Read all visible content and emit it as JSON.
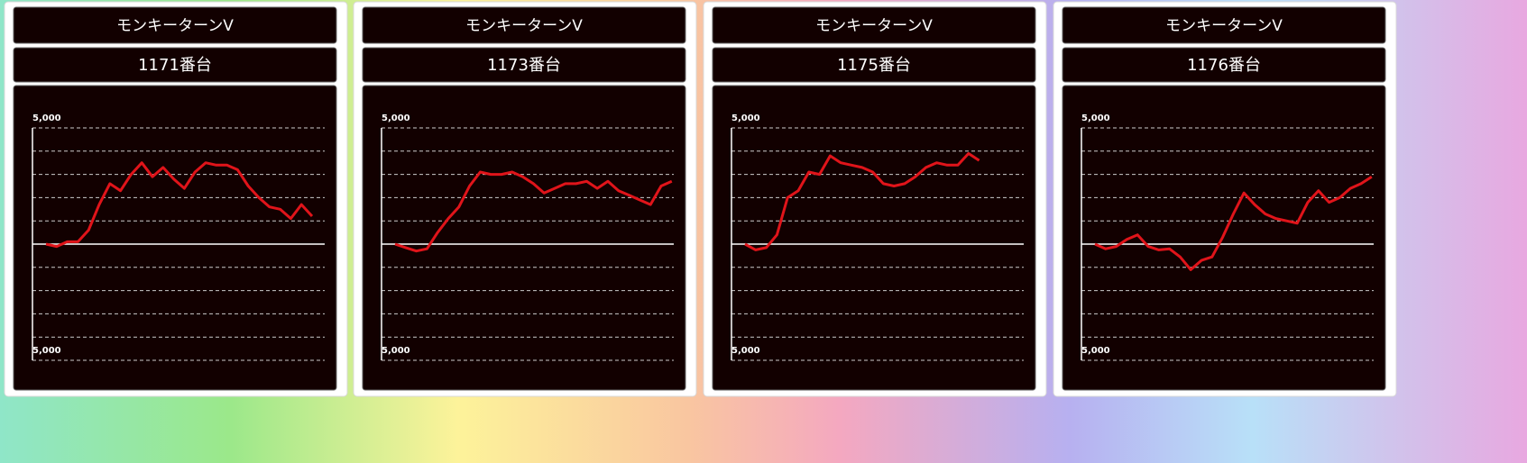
{
  "chart_data": [
    {
      "type": "line",
      "title": "モンキーターンV",
      "subtitle": "1171番台",
      "ylim": [
        -5000,
        5000
      ],
      "yticks": [
        {
          "value": 5000,
          "label": "5,000"
        },
        {
          "value": -5000,
          "label": "5,000"
        }
      ],
      "minor_yticks": [
        4000,
        3000,
        2000,
        1000,
        0,
        -1000,
        -2000,
        -3000,
        -4000
      ],
      "grid": true,
      "series": [
        {
          "color": "#e0141a",
          "values": [
            0,
            -100,
            100,
            100,
            600,
            1700,
            2600,
            2300,
            3000,
            3500,
            2900,
            3300,
            2800,
            2400,
            3100,
            3500,
            3400,
            3400,
            3200,
            2500,
            2000,
            1600,
            1500,
            1100,
            1700,
            1200
          ]
        }
      ]
    },
    {
      "type": "line",
      "title": "モンキーターンV",
      "subtitle": "1173番台",
      "ylim": [
        -5000,
        5000
      ],
      "yticks": [
        {
          "value": 5000,
          "label": "5,000"
        },
        {
          "value": -5000,
          "label": "5,000"
        }
      ],
      "minor_yticks": [
        4000,
        3000,
        2000,
        1000,
        0,
        -1000,
        -2000,
        -3000,
        -4000
      ],
      "grid": true,
      "series": [
        {
          "color": "#e0141a",
          "values": [
            0,
            -150,
            -300,
            -200,
            500,
            1100,
            1600,
            2500,
            3100,
            3000,
            3000,
            3100,
            2900,
            2600,
            2200,
            2400,
            2600,
            2600,
            2700,
            2400,
            2700,
            2300,
            2100,
            1900,
            1700,
            2500,
            2700
          ]
        }
      ]
    },
    {
      "type": "line",
      "title": "モンキーターンV",
      "subtitle": "1175番台",
      "ylim": [
        -5000,
        5000
      ],
      "yticks": [
        {
          "value": 5000,
          "label": "5,000"
        },
        {
          "value": -5000,
          "label": "5,000"
        }
      ],
      "minor_yticks": [
        4000,
        3000,
        2000,
        1000,
        0,
        -1000,
        -2000,
        -3000,
        -4000
      ],
      "grid": true,
      "series": [
        {
          "color": "#e0141a",
          "values": [
            0,
            -250,
            -150,
            400,
            2000,
            2300,
            3100,
            3000,
            3800,
            3500,
            3400,
            3300,
            3100,
            2600,
            2500,
            2600,
            2900,
            3300,
            3500,
            3400,
            3400,
            3900,
            3600
          ]
        }
      ]
    },
    {
      "type": "line",
      "title": "モンキーターンV",
      "subtitle": "1176番台",
      "ylim": [
        -5000,
        5000
      ],
      "yticks": [
        {
          "value": 5000,
          "label": "5,000"
        },
        {
          "value": -5000,
          "label": "5,000"
        }
      ],
      "minor_yticks": [
        4000,
        3000,
        2000,
        1000,
        0,
        -1000,
        -2000,
        -3000,
        -4000
      ],
      "grid": true,
      "series": [
        {
          "color": "#e0141a",
          "values": [
            0,
            -200,
            -100,
            200,
            400,
            -100,
            -250,
            -200,
            -550,
            -1100,
            -700,
            -550,
            300,
            1300,
            2200,
            1700,
            1300,
            1100,
            1000,
            900,
            1800,
            2300,
            1800,
            2000,
            2400,
            2600,
            2900
          ]
        }
      ]
    }
  ]
}
